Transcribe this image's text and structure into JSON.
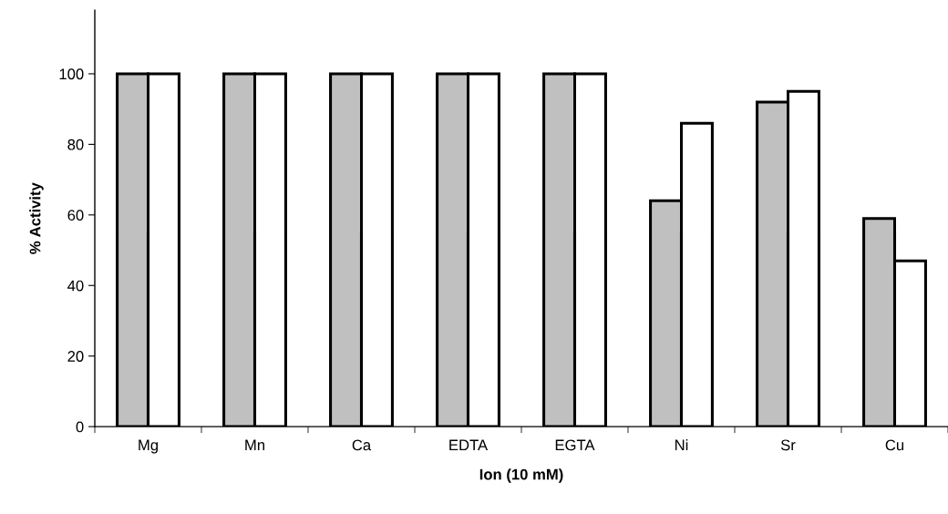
{
  "chart_data": {
    "type": "bar",
    "xlabel": "Ion (10 mM)",
    "ylabel": "% Activity",
    "categories": [
      "Mg",
      "Mn",
      "Ca",
      "EDTA",
      "EGTA",
      "Ni",
      "Sr",
      "Cu"
    ],
    "series": [
      {
        "color": "#c0c0c0",
        "values": [
          100,
          100,
          100,
          100,
          100,
          64,
          92,
          59
        ]
      },
      {
        "color": "#ffffff",
        "values": [
          100,
          100,
          100,
          100,
          100,
          86,
          95,
          47
        ]
      }
    ],
    "ylim": [
      0,
      118
    ],
    "yticks": [
      0,
      20,
      40,
      60,
      80,
      100
    ],
    "grid": false,
    "legend": false
  }
}
